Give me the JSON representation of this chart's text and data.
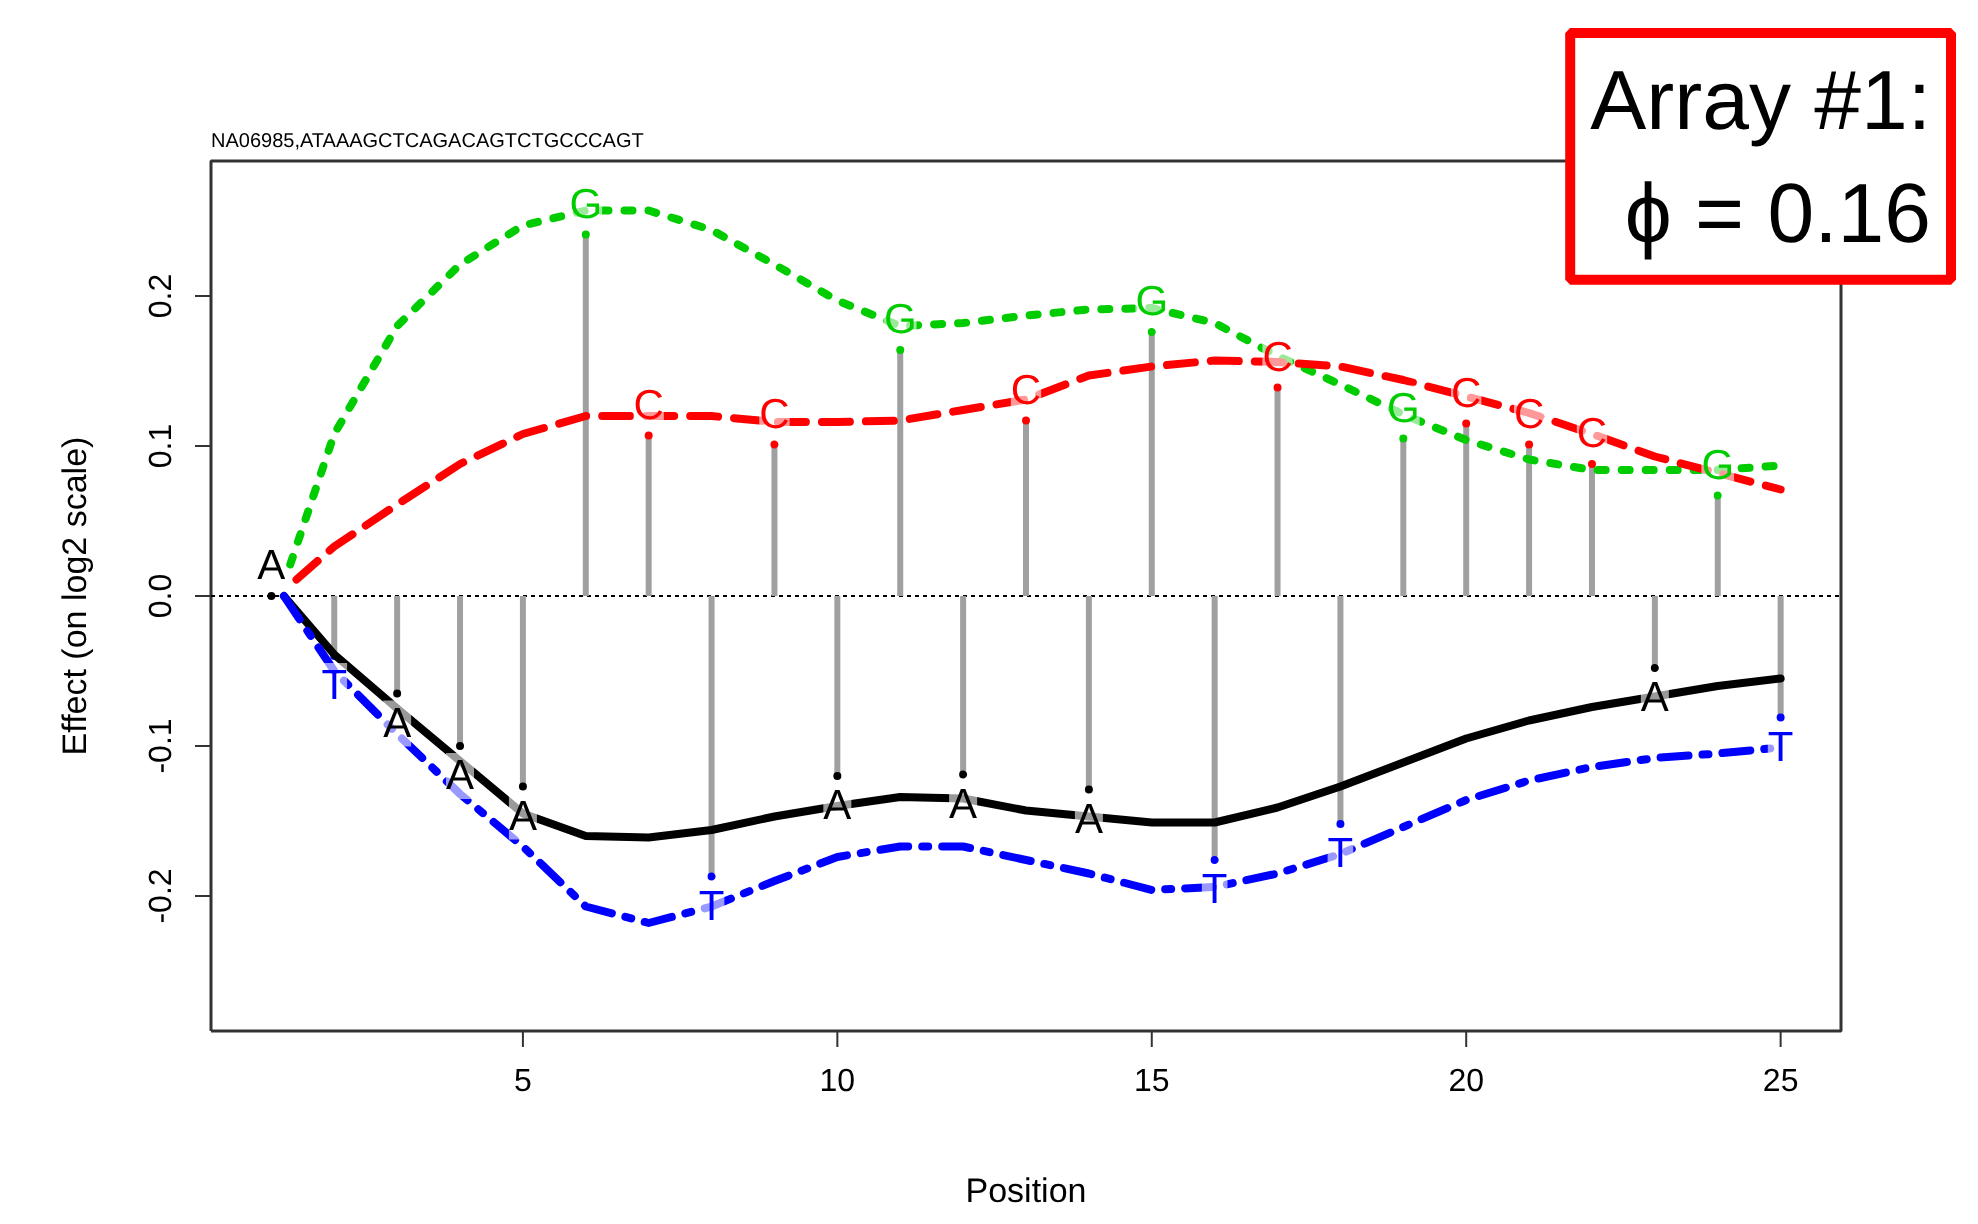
{
  "chart_data": {
    "type": "line",
    "title": "NA06985,ATAAAGCTCAGACAGTCTGCCCAGT",
    "xlabel": "Position",
    "ylabel": "Effect (on log2 scale)",
    "xlim": [
      0.04,
      25.96
    ],
    "ylim": [
      -0.29,
      0.29
    ],
    "xticks": [
      5,
      10,
      15,
      20,
      25
    ],
    "yticks": [
      {
        "value": -0.2,
        "label": "-0.2"
      },
      {
        "value": -0.1,
        "label": "-0.1"
      },
      {
        "value": 0,
        "label": "0.0"
      },
      {
        "value": 0.1,
        "label": "0.1"
      },
      {
        "value": 0.2,
        "label": "0.2"
      }
    ],
    "grid": false,
    "marker": "none",
    "ref_lines": [
      {
        "axis": "y",
        "value": 0,
        "color": "#000000",
        "line_style": "dotted"
      }
    ],
    "annotations": [
      "Array #1:",
      "ϕ = 0.16"
    ],
    "series": [
      {
        "color": "#00cc00",
        "line_style": "dotted",
        "x": [
          1.3,
          2,
          3,
          4,
          5,
          6,
          7,
          8,
          9,
          10,
          11,
          12,
          13,
          14,
          15,
          16,
          17,
          18,
          19,
          20,
          21,
          22,
          23,
          24,
          25
        ],
        "values": [
          0.021,
          0.108,
          0.18,
          0.221,
          0.247,
          0.257,
          0.257,
          0.244,
          0.221,
          0.197,
          0.18,
          0.182,
          0.187,
          0.191,
          0.192,
          0.182,
          0.16,
          0.141,
          0.121,
          0.104,
          0.091,
          0.084,
          0.084,
          0.084,
          0.087
        ]
      },
      {
        "color": "#ff0000",
        "line_style": "dashed",
        "x": [
          1.4,
          2,
          3,
          4,
          5,
          6,
          7,
          8,
          9,
          10,
          11,
          12,
          13,
          14,
          15,
          16,
          17,
          18,
          19,
          20,
          21,
          22,
          23,
          24,
          25
        ],
        "values": [
          0.011,
          0.033,
          0.061,
          0.088,
          0.108,
          0.12,
          0.12,
          0.12,
          0.116,
          0.116,
          0.117,
          0.124,
          0.131,
          0.147,
          0.153,
          0.157,
          0.156,
          0.153,
          0.144,
          0.133,
          0.122,
          0.108,
          0.093,
          0.082,
          0.071
        ]
      },
      {
        "color": "#000000",
        "line_style": "solid",
        "x": [
          1.2,
          2,
          3,
          4,
          5,
          6,
          7,
          8,
          9,
          10,
          11,
          12,
          13,
          14,
          15,
          16,
          17,
          18,
          19,
          20,
          21,
          22,
          23,
          24,
          25
        ],
        "values": [
          0,
          -0.039,
          -0.075,
          -0.11,
          -0.145,
          -0.16,
          -0.161,
          -0.156,
          -0.147,
          -0.14,
          -0.134,
          -0.135,
          -0.143,
          -0.147,
          -0.151,
          -0.151,
          -0.141,
          -0.127,
          -0.111,
          -0.095,
          -0.083,
          -0.074,
          -0.067,
          -0.06,
          -0.055
        ]
      },
      {
        "color": "#0000ff",
        "line_style": "dashdot",
        "x": [
          1.2,
          2,
          3,
          4,
          5,
          6,
          7,
          8,
          9,
          10,
          11,
          12,
          13,
          14,
          15,
          16,
          17,
          18,
          19,
          20,
          21,
          22,
          23,
          24,
          25
        ],
        "values": [
          0,
          -0.05,
          -0.092,
          -0.132,
          -0.167,
          -0.207,
          -0.218,
          -0.207,
          -0.19,
          -0.174,
          -0.167,
          -0.167,
          -0.176,
          -0.185,
          -0.196,
          -0.194,
          -0.185,
          -0.172,
          -0.154,
          -0.136,
          -0.123,
          -0.114,
          -0.108,
          -0.105,
          -0.101
        ]
      },
      {
        "type": "lollipop",
        "color": "#a0a0a0",
        "x": [
          1,
          2,
          3,
          4,
          5,
          6,
          7,
          8,
          9,
          10,
          11,
          12,
          13,
          14,
          15,
          16,
          17,
          18,
          19,
          20,
          21,
          22,
          23,
          24,
          25
        ],
        "values": [
          0,
          -0.04,
          -0.065,
          -0.1,
          -0.127,
          0.241,
          0.107,
          -0.187,
          0.101,
          -0.12,
          0.164,
          -0.119,
          0.117,
          -0.129,
          0.176,
          -0.176,
          0.139,
          -0.152,
          0.105,
          0.115,
          0.101,
          0.088,
          -0.048,
          0.067,
          -0.081
        ],
        "value_labels": [
          "A",
          "T",
          "A",
          "A",
          "A",
          "G",
          "C",
          "T",
          "C",
          "A",
          "G",
          "A",
          "C",
          "A",
          "G",
          "T",
          "C",
          "T",
          "G",
          "C",
          "C",
          "C",
          "A",
          "G",
          "T"
        ],
        "colors": [
          "#000000",
          "#0000ff",
          "#000000",
          "#000000",
          "#000000",
          "#00cc00",
          "#ff0000",
          "#0000ff",
          "#ff0000",
          "#000000",
          "#00cc00",
          "#000000",
          "#ff0000",
          "#000000",
          "#00cc00",
          "#0000ff",
          "#ff0000",
          "#0000ff",
          "#00cc00",
          "#ff0000",
          "#ff0000",
          "#ff0000",
          "#000000",
          "#00cc00",
          "#0000ff"
        ]
      }
    ]
  }
}
